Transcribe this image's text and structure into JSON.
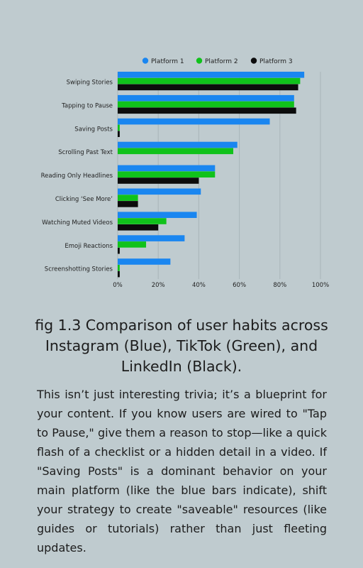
{
  "colors": {
    "series": [
      "#1a86f0",
      "#10c21b",
      "#0c0c0c"
    ],
    "grid": "#a9b6ba",
    "background": "#bfcbcf"
  },
  "chart_data": {
    "type": "bar",
    "orientation": "horizontal",
    "categories": [
      "Swiping Stories",
      "Tapping to Pause",
      "Saving Posts",
      "Scrolling Past Text",
      "Reading Only Headlines",
      "Clicking ‘See More’",
      "Watching Muted Videos",
      "Emoji Reactions",
      "Screenshotting Stories"
    ],
    "series": [
      {
        "name": "Platform 1",
        "values": [
          92,
          87,
          75,
          59,
          48,
          41,
          39,
          33,
          26
        ]
      },
      {
        "name": "Platform 2",
        "values": [
          90,
          87,
          1,
          57,
          48,
          10,
          24,
          14,
          1
        ]
      },
      {
        "name": "Platform 3",
        "values": [
          89,
          88,
          1,
          0,
          40,
          10,
          20,
          1,
          1
        ]
      }
    ],
    "xlim": [
      0,
      100
    ],
    "x_ticks": [
      "0%",
      "20%",
      "40%",
      "60%",
      "80%",
      "100%"
    ],
    "grid": true,
    "legend_position": "top"
  },
  "caption": "fig 1.3 Comparison of user habits across Instagram (Blue), TikTok (Green), and LinkedIn (Black).",
  "body_text": "This isn’t just interesting trivia; it’s a blueprint for your content. If you know users are wired to \"Tap to Pause,\" give them a reason to stop—like a quick flash of a checklist or a hidden detail in a video. If \"Saving Posts\" is a dominant behavior on your main platform (like the blue bars indicate), shift your strategy to create \"saveable\" resources (like guides or tutorials) rather than just fleeting updates."
}
